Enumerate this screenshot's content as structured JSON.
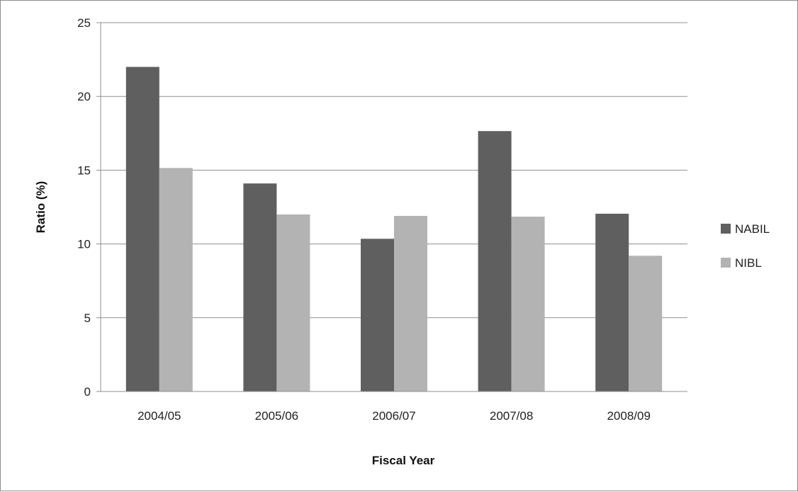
{
  "chart_data": {
    "type": "bar",
    "title": "",
    "xlabel": "Fiscal Year",
    "ylabel": "Ratio (%)",
    "categories": [
      "2004/05",
      "2005/06",
      "2006/07",
      "2007/08",
      "2008/09"
    ],
    "series": [
      {
        "name": "NABIL",
        "color": "#5f5f5f",
        "values": [
          22.0,
          14.1,
          10.35,
          17.65,
          12.05
        ]
      },
      {
        "name": "NIBL",
        "color": "#b3b3b3",
        "values": [
          15.15,
          12.0,
          11.9,
          11.85,
          9.2
        ]
      }
    ],
    "ylim": [
      0,
      25
    ],
    "yticks": [
      0,
      5,
      10,
      15,
      20,
      25
    ],
    "grid": true,
    "legend_position": "right"
  }
}
